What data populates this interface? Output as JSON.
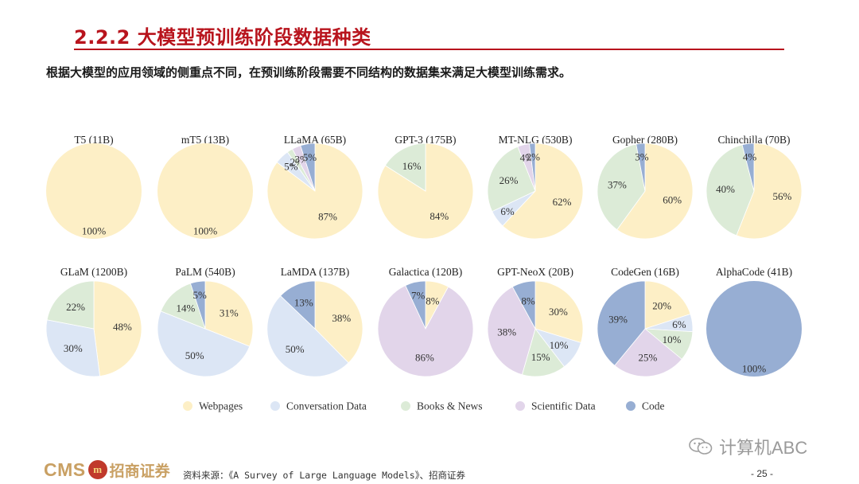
{
  "header": {
    "title": "2.2.2 大模型预训练阶段数据种类",
    "subtitle": "根据大模型的应用领域的侧重点不同，在预训练阶段需要不同结构的数据集来满足大模型训练需求。"
  },
  "colors": {
    "title_red": "#b8141d",
    "Webpages": "#fdefc6",
    "Conversation Data": "#dce6f5",
    "Books & News": "#dcebd7",
    "Scientific Data": "#e2d5ea",
    "Code": "#97aed3"
  },
  "legend": [
    "Webpages",
    "Conversation Data",
    "Books & News",
    "Scientific Data",
    "Code"
  ],
  "chart_data": [
    {
      "type": "pie",
      "title": "T5 (11B)",
      "slices": [
        {
          "category": "Webpages",
          "value": 100,
          "label": "100%"
        }
      ]
    },
    {
      "type": "pie",
      "title": "mT5 (13B)",
      "slices": [
        {
          "category": "Webpages",
          "value": 100,
          "label": "100%"
        }
      ]
    },
    {
      "type": "pie",
      "title": "LLaMA (65B)",
      "slices": [
        {
          "category": "Webpages",
          "value": 87,
          "label": "87%"
        },
        {
          "category": "Conversation Data",
          "value": 5,
          "label": "5%"
        },
        {
          "category": "Books & News",
          "value": 2,
          "label": "2%"
        },
        {
          "category": "Scientific Data",
          "value": 3,
          "label": "3%"
        },
        {
          "category": "Code",
          "value": 5,
          "label": "5%"
        }
      ]
    },
    {
      "type": "pie",
      "title": "GPT-3 (175B)",
      "slices": [
        {
          "category": "Webpages",
          "value": 84,
          "label": "84%"
        },
        {
          "category": "Books & News",
          "value": 16,
          "label": "16%"
        }
      ]
    },
    {
      "type": "pie",
      "title": "MT-NLG (530B)",
      "slices": [
        {
          "category": "Webpages",
          "value": 62,
          "label": "62%"
        },
        {
          "category": "Conversation Data",
          "value": 6,
          "label": "6%"
        },
        {
          "category": "Books & News",
          "value": 26,
          "label": "26%"
        },
        {
          "category": "Scientific Data",
          "value": 4,
          "label": "4%"
        },
        {
          "category": "Code",
          "value": 2,
          "label": "2%"
        }
      ]
    },
    {
      "type": "pie",
      "title": "Gopher (280B)",
      "slices": [
        {
          "category": "Webpages",
          "value": 60,
          "label": "60%"
        },
        {
          "category": "Books & News",
          "value": 37,
          "label": "37%"
        },
        {
          "category": "Code",
          "value": 3,
          "label": "3%"
        }
      ]
    },
    {
      "type": "pie",
      "title": "Chinchilla (70B)",
      "slices": [
        {
          "category": "Webpages",
          "value": 56,
          "label": "56%"
        },
        {
          "category": "Books & News",
          "value": 40,
          "label": "40%"
        },
        {
          "category": "Code",
          "value": 4,
          "label": "4%"
        }
      ]
    },
    {
      "type": "pie",
      "title": "GLaM (1200B)",
      "slices": [
        {
          "category": "Webpages",
          "value": 48,
          "label": "48%"
        },
        {
          "category": "Conversation Data",
          "value": 30,
          "label": "30%"
        },
        {
          "category": "Books & News",
          "value": 22,
          "label": "22%"
        }
      ]
    },
    {
      "type": "pie",
      "title": "PaLM (540B)",
      "slices": [
        {
          "category": "Webpages",
          "value": 31,
          "label": "31%"
        },
        {
          "category": "Conversation Data",
          "value": 50,
          "label": "50%"
        },
        {
          "category": "Books & News",
          "value": 14,
          "label": "14%"
        },
        {
          "category": "Code",
          "value": 5,
          "label": "5%"
        }
      ]
    },
    {
      "type": "pie",
      "title": "LaMDA (137B)",
      "slices": [
        {
          "category": "Webpages",
          "value": 38,
          "label": "38%"
        },
        {
          "category": "Conversation Data",
          "value": 50,
          "label": "50%"
        },
        {
          "category": "Code",
          "value": 13,
          "label": "13%"
        }
      ]
    },
    {
      "type": "pie",
      "title": "Galactica (120B)",
      "slices": [
        {
          "category": "Webpages",
          "value": 8,
          "label": "8%"
        },
        {
          "category": "Scientific Data",
          "value": 86,
          "label": "86%"
        },
        {
          "category": "Code",
          "value": 7,
          "label": "7%"
        }
      ]
    },
    {
      "type": "pie",
      "title": "GPT-NeoX (20B)",
      "slices": [
        {
          "category": "Webpages",
          "value": 30,
          "label": "30%"
        },
        {
          "category": "Conversation Data",
          "value": 10,
          "label": "10%"
        },
        {
          "category": "Books & News",
          "value": 15,
          "label": "15%"
        },
        {
          "category": "Scientific Data",
          "value": 38,
          "label": "38%"
        },
        {
          "category": "Code",
          "value": 8,
          "label": "8%"
        }
      ]
    },
    {
      "type": "pie",
      "title": "CodeGen (16B)",
      "slices": [
        {
          "category": "Webpages",
          "value": 20,
          "label": "20%"
        },
        {
          "category": "Conversation Data",
          "value": 6,
          "label": "6%"
        },
        {
          "category": "Books & News",
          "value": 10,
          "label": "10%"
        },
        {
          "category": "Scientific Data",
          "value": 25,
          "label": "25%"
        },
        {
          "category": "Code",
          "value": 39,
          "label": "39%"
        }
      ]
    },
    {
      "type": "pie",
      "title": "AlphaCode (41B)",
      "slices": [
        {
          "category": "Code",
          "value": 100,
          "label": "100%"
        }
      ]
    }
  ],
  "footer": {
    "logo_cms": "CMS",
    "logo_mark": "m",
    "logo_cn": "招商证券",
    "source": "资料来源：《A Survey of Large Language Models》、招商证券",
    "page": "- 25 -",
    "watermark": "计算机ABC"
  }
}
